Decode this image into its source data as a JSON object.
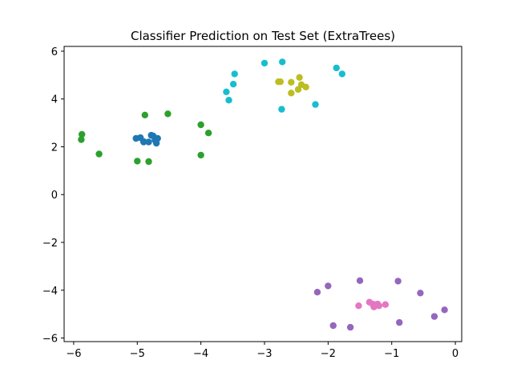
{
  "chart_data": {
    "type": "scatter",
    "title": "Classifier Prediction on Test Set (ExtraTrees)",
    "xlabel": "",
    "ylabel": "",
    "xlim": [
      -6.15,
      0.1
    ],
    "ylim": [
      -6.15,
      6.2
    ],
    "xticks": [
      -6,
      -5,
      -4,
      -3,
      -2,
      -1,
      0
    ],
    "yticks": [
      -6,
      -4,
      -2,
      0,
      2,
      4,
      6
    ],
    "grid": false,
    "legend": "none",
    "series": [
      {
        "color": "#1f77b4",
        "points": [
          [
            -5.02,
            2.35
          ],
          [
            -4.95,
            2.38
          ],
          [
            -4.9,
            2.2
          ],
          [
            -4.82,
            2.2
          ],
          [
            -4.78,
            2.48
          ],
          [
            -4.75,
            2.45
          ],
          [
            -4.72,
            2.28
          ],
          [
            -4.7,
            2.15
          ],
          [
            -4.68,
            2.35
          ],
          [
            -4.9,
            2.22
          ]
        ]
      },
      {
        "color": "#2ca02c",
        "points": [
          [
            -5.87,
            2.52
          ],
          [
            -5.88,
            2.3
          ],
          [
            -5.6,
            1.7
          ],
          [
            -4.88,
            3.33
          ],
          [
            -4.52,
            3.38
          ],
          [
            -5.0,
            1.4
          ],
          [
            -4.82,
            1.38
          ],
          [
            -4.0,
            2.92
          ],
          [
            -3.88,
            2.58
          ],
          [
            -4.0,
            1.65
          ]
        ]
      },
      {
        "color": "#17becf",
        "points": [
          [
            -3.0,
            5.5
          ],
          [
            -2.72,
            5.55
          ],
          [
            -3.47,
            5.05
          ],
          [
            -3.49,
            4.62
          ],
          [
            -3.6,
            4.3
          ],
          [
            -3.56,
            3.95
          ],
          [
            -2.73,
            3.57
          ],
          [
            -1.87,
            5.3
          ],
          [
            -1.78,
            5.05
          ],
          [
            -2.2,
            3.77
          ]
        ]
      },
      {
        "color": "#bcbd22",
        "points": [
          [
            -2.78,
            4.72
          ],
          [
            -2.75,
            4.72
          ],
          [
            -2.58,
            4.7
          ],
          [
            -2.58,
            4.25
          ],
          [
            -2.45,
            4.9
          ],
          [
            -2.47,
            4.4
          ],
          [
            -2.42,
            4.6
          ],
          [
            -2.35,
            4.5
          ]
        ]
      },
      {
        "color": "#9467bd",
        "points": [
          [
            -2.17,
            -4.08
          ],
          [
            -2.0,
            -3.82
          ],
          [
            -1.5,
            -3.6
          ],
          [
            -0.9,
            -3.62
          ],
          [
            -0.55,
            -4.12
          ],
          [
            -1.92,
            -5.48
          ],
          [
            -1.65,
            -5.55
          ],
          [
            -0.88,
            -5.35
          ],
          [
            -0.33,
            -5.1
          ],
          [
            -0.17,
            -4.82
          ]
        ]
      },
      {
        "color": "#e377c2",
        "points": [
          [
            -1.52,
            -4.65
          ],
          [
            -1.35,
            -4.5
          ],
          [
            -1.3,
            -4.58
          ],
          [
            -1.28,
            -4.7
          ],
          [
            -1.25,
            -4.6
          ],
          [
            -1.22,
            -4.58
          ],
          [
            -1.2,
            -4.65
          ],
          [
            -1.1,
            -4.6
          ]
        ]
      }
    ]
  }
}
